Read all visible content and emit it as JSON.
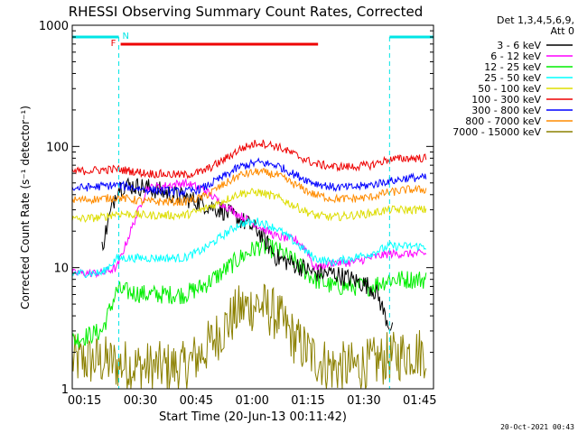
{
  "chart_data": {
    "type": "line",
    "title": "RHESSI Observing Summary Count Rates, Corrected",
    "xlabel": "Start Time (20-Jun-13 00:11:42)",
    "ylabel": "Corrected Count Rate (s⁻¹ detector⁻¹)",
    "yscale": "log",
    "ylim": [
      1,
      1000
    ],
    "xlim_minutes": [
      0,
      97
    ],
    "x_ticks": [
      "00:15",
      "00:30",
      "00:45",
      "01:00",
      "01:15",
      "01:30",
      "01:45"
    ],
    "y_ticks": [
      "1",
      "10",
      "100",
      "1000"
    ],
    "legend": {
      "placement": "top-right-outside",
      "header": [
        "Det 1,3,4,5,6,9,",
        "Att 0"
      ]
    },
    "timestamp": "20-Oct-2021 00:43",
    "markers": {
      "night_label": "N",
      "flare_label": "F",
      "night_color": "#00e5e5",
      "flare_color": "#ee0000",
      "night_intervals_minutes": [
        [
          0,
          12.5
        ],
        [
          85.2,
          97
        ]
      ],
      "flare_interval_minutes": [
        13,
        66
      ]
    },
    "series": [
      {
        "name": "3 - 6 keV",
        "color": "#000000",
        "x": [
          8,
          12,
          14,
          20,
          30,
          40,
          45,
          50,
          55,
          62,
          65,
          70,
          75,
          80,
          82,
          84,
          86
        ],
        "y": [
          15,
          45,
          48,
          46,
          38,
          30,
          25,
          20,
          12,
          10,
          9,
          9,
          8,
          7,
          6,
          4,
          3
        ]
      },
      {
        "name": "6 - 12 keV",
        "color": "#ff00ff",
        "x": [
          0,
          8,
          12,
          20,
          30,
          35,
          40,
          45,
          50,
          55,
          60,
          63,
          65,
          70,
          75,
          80,
          85,
          86,
          90,
          95
        ],
        "y": [
          9,
          9,
          10,
          45,
          50,
          45,
          34,
          27,
          22,
          18,
          17,
          14,
          10,
          11,
          11,
          12,
          13,
          13,
          13,
          13
        ]
      },
      {
        "name": "12 - 25 keV",
        "color": "#00ee00",
        "x": [
          0,
          8,
          12,
          20,
          30,
          35,
          40,
          45,
          50,
          55,
          60,
          65,
          70,
          75,
          80,
          85,
          86,
          90,
          95
        ],
        "y": [
          2.5,
          3,
          6.5,
          6,
          6,
          7,
          9,
          12,
          15,
          14,
          11,
          8,
          7,
          7,
          7,
          8,
          8,
          8,
          8
        ]
      },
      {
        "name": "25 - 50 keV",
        "color": "#00ffff",
        "x": [
          0,
          8,
          12,
          20,
          30,
          35,
          40,
          45,
          50,
          55,
          60,
          65,
          70,
          75,
          80,
          85,
          86,
          90,
          95
        ],
        "y": [
          9,
          9,
          12,
          12,
          12,
          14,
          18,
          23,
          24,
          21,
          16,
          12,
          11,
          12,
          13,
          15,
          15,
          15,
          15
        ]
      },
      {
        "name": "50 - 100 keV",
        "color": "#dddd00",
        "x": [
          0,
          8,
          12,
          20,
          30,
          35,
          40,
          45,
          50,
          55,
          60,
          65,
          70,
          75,
          80,
          85,
          86,
          90,
          95
        ],
        "y": [
          25,
          26,
          28,
          27,
          27,
          30,
          35,
          41,
          42,
          38,
          32,
          27,
          26,
          27,
          28,
          30,
          30,
          30,
          30
        ]
      },
      {
        "name": "100 - 300 keV",
        "color": "#ee0000",
        "x": [
          0,
          8,
          12,
          20,
          30,
          35,
          40,
          45,
          50,
          55,
          60,
          65,
          70,
          75,
          80,
          85,
          86,
          90,
          95
        ],
        "y": [
          62,
          64,
          65,
          60,
          58,
          62,
          75,
          95,
          108,
          100,
          85,
          72,
          68,
          68,
          70,
          78,
          78,
          80,
          80
        ]
      },
      {
        "name": "300 - 800 keV",
        "color": "#0000ff",
        "x": [
          0,
          8,
          12,
          20,
          30,
          35,
          40,
          45,
          50,
          55,
          60,
          65,
          70,
          75,
          80,
          85,
          86,
          90,
          95
        ],
        "y": [
          45,
          47,
          48,
          44,
          42,
          45,
          55,
          68,
          74,
          70,
          58,
          50,
          46,
          46,
          48,
          52,
          52,
          55,
          55
        ]
      },
      {
        "name": "800 - 7000 keV",
        "color": "#ff8c00",
        "x": [
          0,
          8,
          12,
          20,
          30,
          35,
          40,
          45,
          50,
          55,
          60,
          65,
          70,
          75,
          80,
          85,
          86,
          90,
          95
        ],
        "y": [
          36,
          37,
          38,
          35,
          35,
          38,
          47,
          58,
          62,
          58,
          48,
          40,
          37,
          37,
          38,
          42,
          42,
          44,
          44
        ]
      },
      {
        "name": "7000 - 15000 keV",
        "color": "#8b8000",
        "x": [
          0,
          8,
          12,
          20,
          30,
          35,
          40,
          45,
          50,
          55,
          60,
          65,
          70,
          75,
          80,
          85,
          86,
          90,
          95
        ],
        "y": [
          1.7,
          1.7,
          1.6,
          1.5,
          1.5,
          2.0,
          3.0,
          4.5,
          5.0,
          4.0,
          2.5,
          1.8,
          1.5,
          1.5,
          1.6,
          1.8,
          1.8,
          2.0,
          2.0
        ]
      }
    ]
  }
}
